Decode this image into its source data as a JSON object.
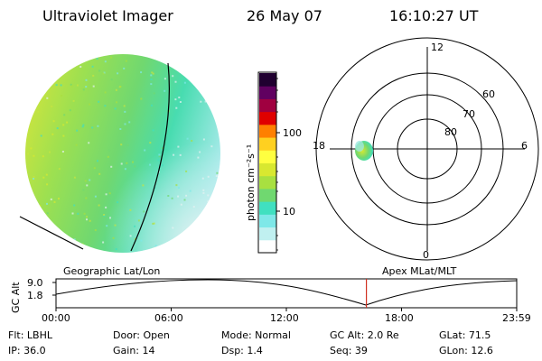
{
  "header": {
    "instrument": "Ultraviolet Imager",
    "date": "26 May 07",
    "time": "16:10:27 UT"
  },
  "colorbar": {
    "unit_label": "photon cm⁻²s⁻¹",
    "tick_labels": [
      "100",
      "10"
    ],
    "colors": [
      "#ffffff",
      "#c0f0f0",
      "#7ee8e8",
      "#40e0c0",
      "#70d870",
      "#a8e040",
      "#d8e830",
      "#ffff40",
      "#ffd020",
      "#ff8000",
      "#e00000",
      "#a00040",
      "#600060",
      "#200030"
    ]
  },
  "polar_plot": {
    "mlt_labels": {
      "top": "12",
      "right": "6",
      "bottom": "0",
      "left": "18"
    },
    "lat_labels": [
      "60",
      "70",
      "80"
    ]
  },
  "timeline": {
    "left_label": "Geographic Lat/Lon",
    "right_label": "Apex MLat/MLT",
    "y_axis_title": "GC Alt",
    "y_ticks": [
      "9.0",
      "1.8"
    ],
    "x_ticks": [
      "00:00",
      "06:00",
      "12:00",
      "18:00",
      "23:59"
    ],
    "current_time_fraction": 0.6737
  },
  "info": {
    "flt": "Flt: LBHL",
    "ip": "IP: 36.0",
    "door": "Door: Open",
    "gain": "Gain: 14",
    "mode": "Mode: Normal",
    "dsp": "Dsp:    1.4",
    "gcalt": "GC Alt: 2.0 Re",
    "seq": "Seq: 39",
    "glat": "GLat:  71.5",
    "glon": "GLon:  12.6"
  },
  "colors": {
    "marker": "#d03020",
    "ink": "#000000"
  }
}
